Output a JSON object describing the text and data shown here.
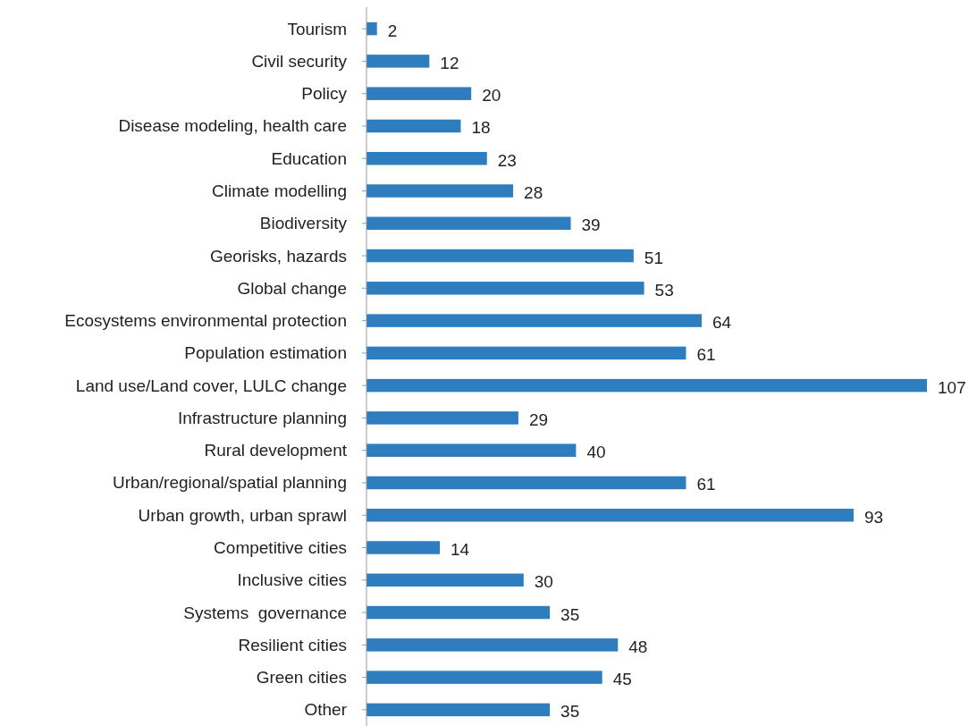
{
  "chart_data": {
    "type": "bar",
    "orientation": "horizontal",
    "categories": [
      "Tourism",
      "Civil security",
      "Policy",
      "Disease modeling, health care",
      "Education",
      "Climate modelling",
      "Biodiversity",
      "Georisks, hazards",
      "Global change",
      "Ecosystems environmental protection",
      "Population estimation",
      "Land use/Land cover, LULC change",
      "Infrastructure planning",
      "Rural development",
      "Urban/regional/spatial planning",
      "Urban growth, urban sprawl",
      "Competitive cities",
      "Inclusive cities",
      "Systems  governance",
      "Resilient cities",
      "Green cities",
      "Other"
    ],
    "values": [
      2,
      12,
      20,
      18,
      23,
      28,
      39,
      51,
      53,
      64,
      61,
      107,
      29,
      40,
      61,
      93,
      14,
      30,
      35,
      48,
      45,
      35
    ],
    "color": "#2e7dbf",
    "data_labels": true
  }
}
